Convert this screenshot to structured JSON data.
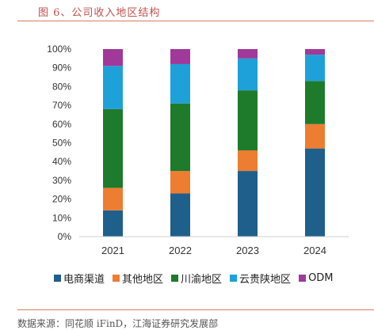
{
  "figure": {
    "title": "图 6、公司收入地区结构",
    "source": "数据来源：同花顺 iFinD，江海证券研究发展部"
  },
  "chart_data": {
    "type": "bar",
    "stacked": true,
    "percent": true,
    "categories": [
      "2021",
      "2022",
      "2023",
      "2024"
    ],
    "series": [
      {
        "name": "电商渠道",
        "color": "#1f5f8b",
        "values": [
          14,
          23,
          35,
          47
        ]
      },
      {
        "name": "其他地区",
        "color": "#ed7d31",
        "values": [
          12,
          12,
          11,
          13
        ]
      },
      {
        "name": "川渝地区",
        "color": "#1e7b2b",
        "values": [
          42,
          36,
          32,
          23
        ]
      },
      {
        "name": "云贵陕地区",
        "color": "#1ea0d8",
        "values": [
          23,
          21,
          17,
          14
        ]
      },
      {
        "name": "ODM",
        "color": "#a0399a",
        "values": [
          9,
          8,
          5,
          3
        ]
      }
    ],
    "yticks": [
      "0%",
      "10%",
      "20%",
      "30%",
      "40%",
      "50%",
      "60%",
      "70%",
      "80%",
      "90%",
      "100%"
    ],
    "ylim": [
      0,
      100
    ],
    "xlabel": "",
    "ylabel": "",
    "grid": false,
    "legend": "bottom"
  }
}
